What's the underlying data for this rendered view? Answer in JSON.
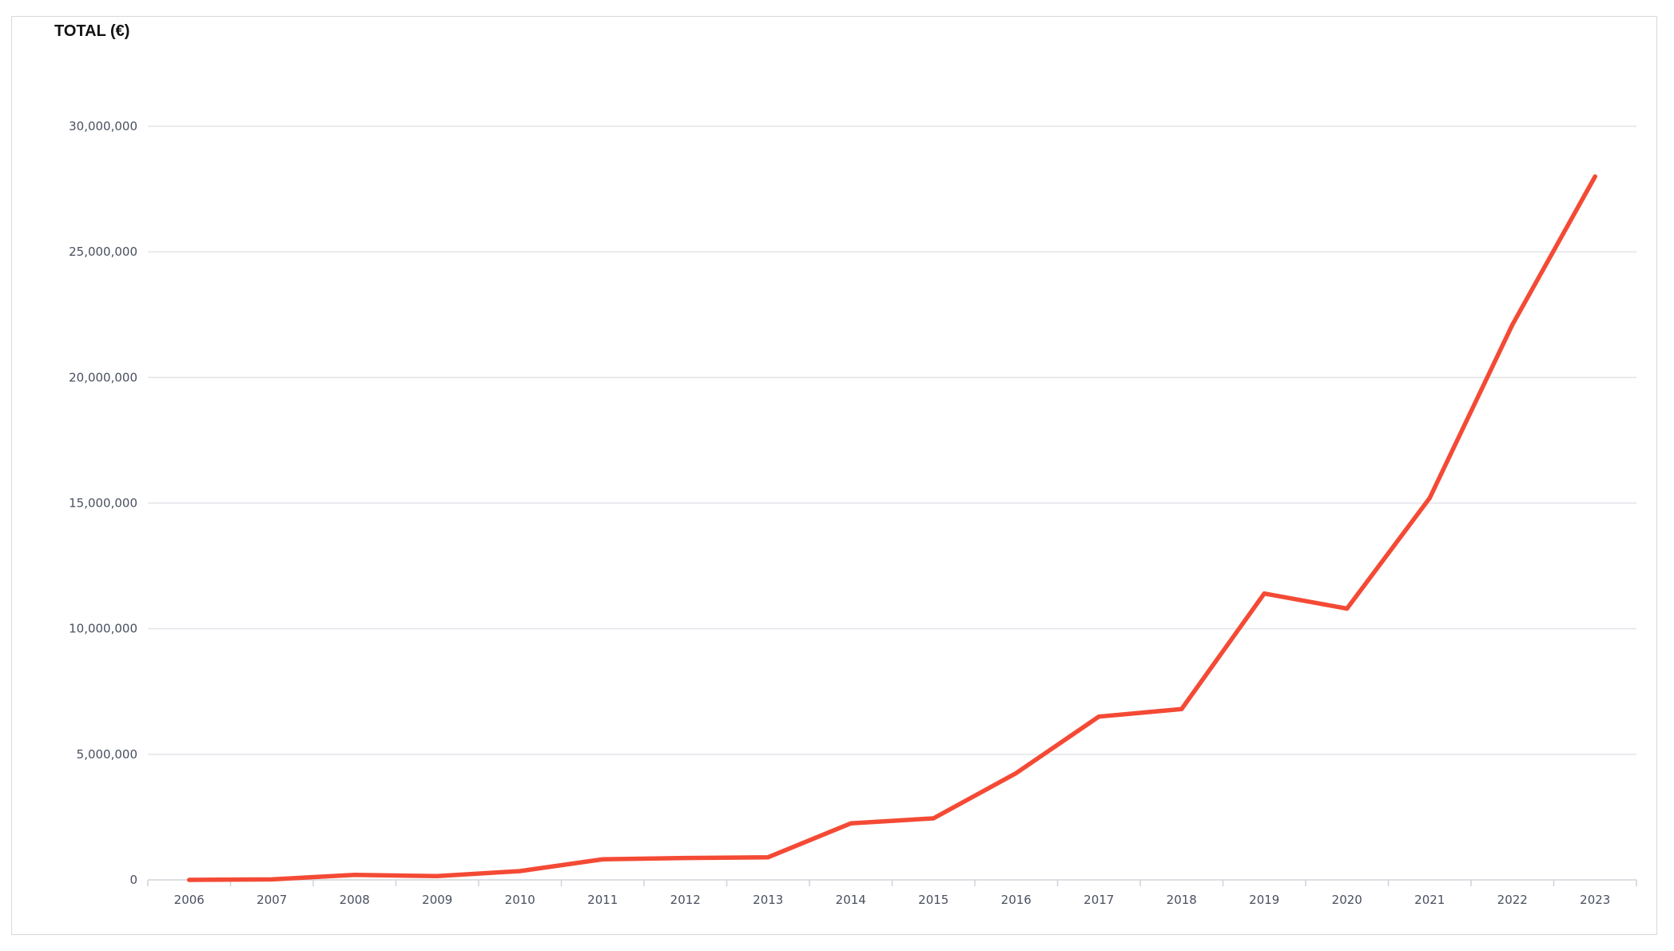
{
  "chart_data": {
    "type": "line",
    "title": "TOTAL (€)",
    "xlabel": "",
    "ylabel": "",
    "categories": [
      "2006",
      "2007",
      "2008",
      "2009",
      "2010",
      "2011",
      "2012",
      "2013",
      "2014",
      "2015",
      "2016",
      "2017",
      "2018",
      "2019",
      "2020",
      "2021",
      "2022",
      "2023"
    ],
    "series": [
      {
        "values": [
          0,
          20000,
          200000,
          150000,
          350000,
          820000,
          870000,
          900000,
          2250000,
          2450000,
          4250000,
          6500000,
          6800000,
          11400000,
          10800000,
          15200000,
          22100000,
          28000000
        ],
        "color": "#f44a35"
      }
    ],
    "ylim": [
      0,
      30000000
    ],
    "yticks": [
      "0",
      "5,000,000",
      "10,000,000",
      "15,000,000",
      "20,000,000",
      "25,000,000",
      "30,000,000"
    ],
    "ytick_values": [
      0,
      5000000,
      10000000,
      15000000,
      20000000,
      25000000,
      30000000
    ],
    "grid": true,
    "gridline_color": "#e1e4e9",
    "axis_color": "#cfd3d9"
  }
}
